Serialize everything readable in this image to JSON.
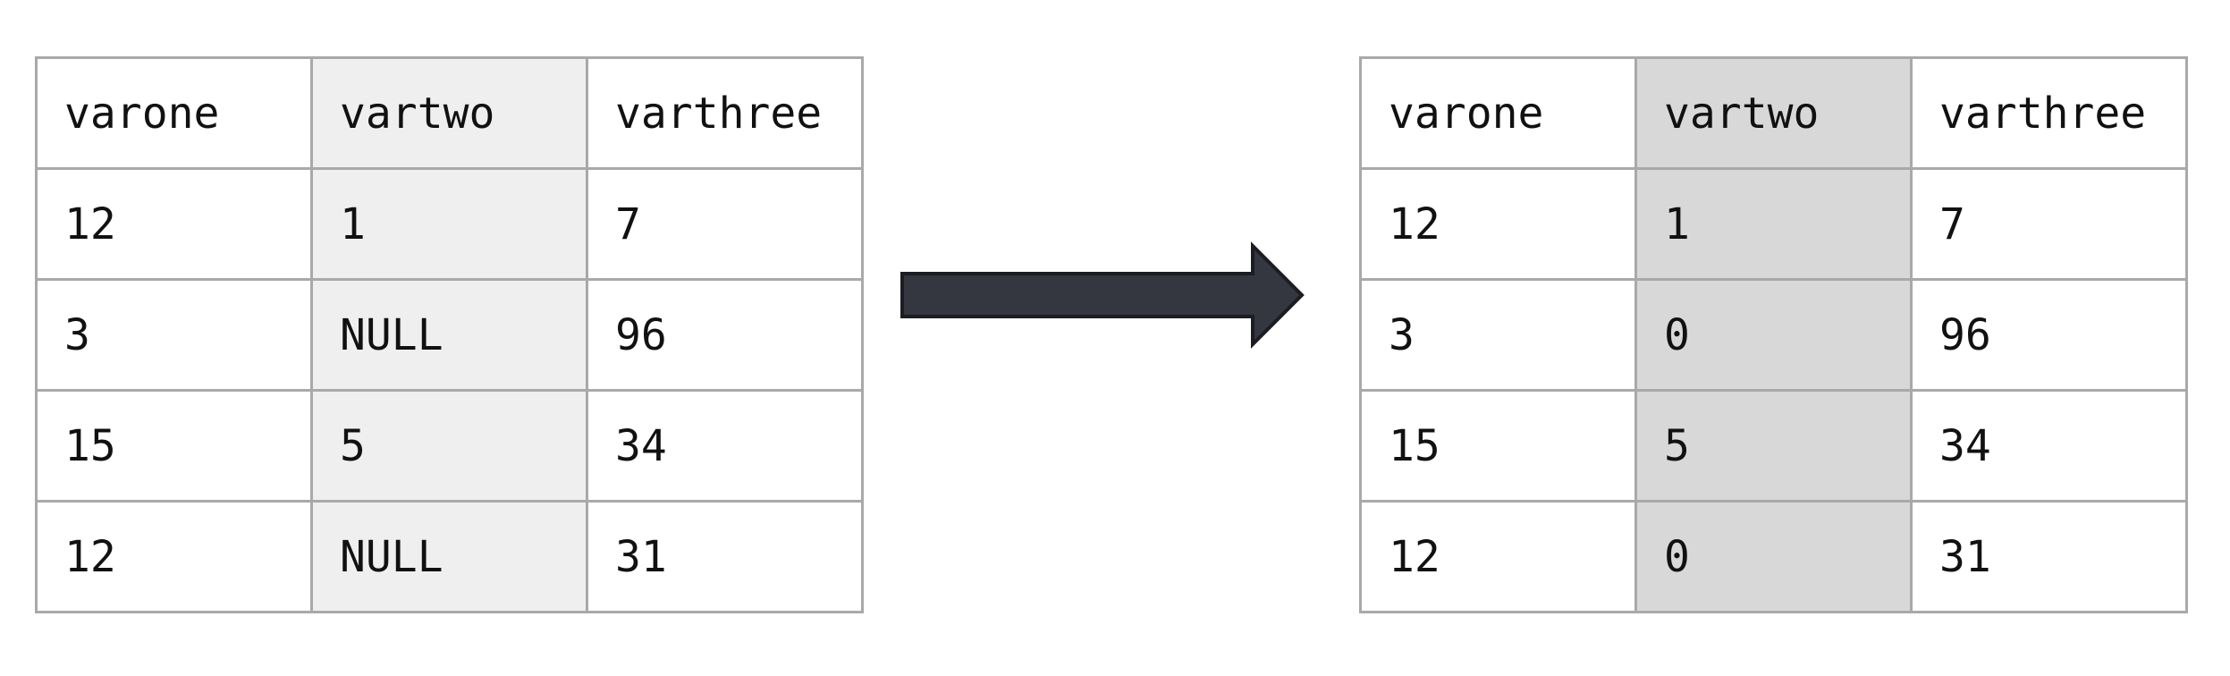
{
  "before_table": {
    "headers": [
      "varone",
      "vartwo",
      "varthree"
    ],
    "rows": [
      [
        "12",
        "1",
        "7"
      ],
      [
        "3",
        "NULL",
        "96"
      ],
      [
        "15",
        "5",
        "34"
      ],
      [
        "12",
        "NULL",
        "31"
      ]
    ],
    "highlighted_column": "vartwo"
  },
  "after_table": {
    "headers": [
      "varone",
      "vartwo",
      "varthree"
    ],
    "rows": [
      [
        "12",
        "1",
        "7"
      ],
      [
        "3",
        "0",
        "96"
      ],
      [
        "15",
        "5",
        "34"
      ],
      [
        "12",
        "0",
        "31"
      ]
    ],
    "highlighted_column": "vartwo"
  },
  "arrow": {
    "icon": "right-arrow-icon",
    "fill": "#343640",
    "stroke": "#1c1d22"
  },
  "colors": {
    "border": "#a9a9a9",
    "before_highlight": "#efefef",
    "after_highlight": "#d8d8d8",
    "text": "#111111"
  }
}
